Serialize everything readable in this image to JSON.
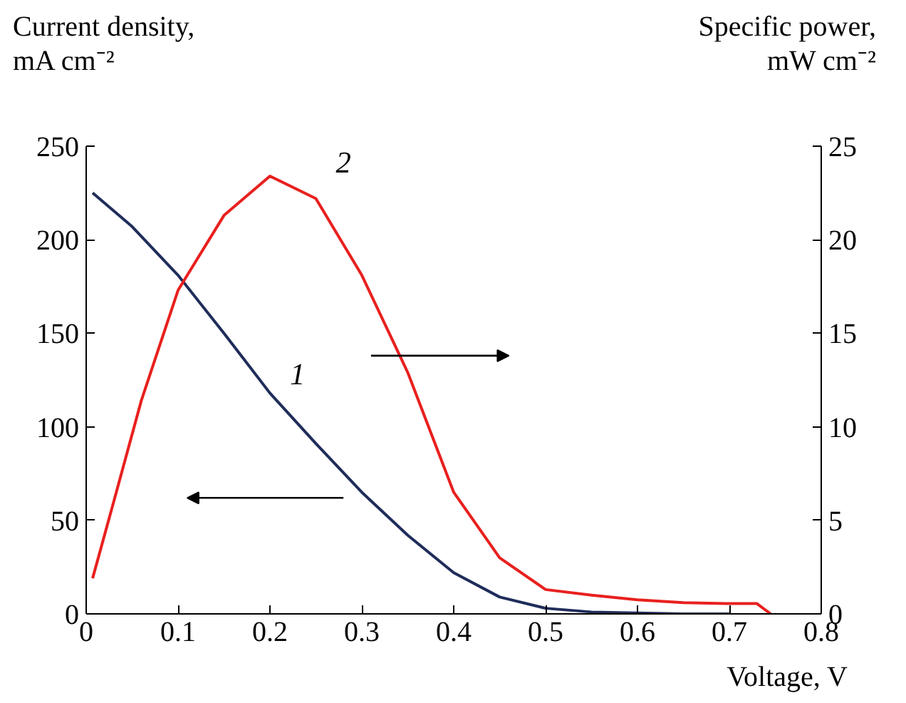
{
  "chart_data": {
    "type": "line",
    "xlabel": "Voltage, V",
    "ylabel": "Current density,\nmA cm⁻²",
    "y2label": "Specific power,\nmW cm⁻²",
    "xlim": [
      0,
      0.8
    ],
    "xticks": [
      0,
      0.1,
      0.2,
      0.3,
      0.4,
      0.5,
      0.6,
      0.7,
      0.8
    ],
    "ylim": [
      0,
      250
    ],
    "yticks": [
      0,
      50,
      100,
      150,
      200,
      250
    ],
    "y2lim": [
      0,
      25
    ],
    "y2ticks": [
      0,
      5,
      10,
      15,
      20,
      25
    ],
    "series": [
      {
        "name": "1",
        "color": "#1f2d5a",
        "x": [
          0.007,
          0.05,
          0.1,
          0.15,
          0.2,
          0.25,
          0.3,
          0.35,
          0.4,
          0.45,
          0.5,
          0.55,
          0.6,
          0.65,
          0.7
        ],
        "values": [
          225,
          207,
          181,
          150,
          118,
          91,
          65,
          42,
          22,
          9,
          3,
          1,
          0.5,
          0,
          0
        ]
      },
      {
        "name": "2",
        "color": "#e8201e",
        "axis": "y2",
        "x": [
          0.007,
          0.03,
          0.06,
          0.1,
          0.15,
          0.2,
          0.25,
          0.3,
          0.35,
          0.4,
          0.45,
          0.5,
          0.55,
          0.6,
          0.65,
          0.7,
          0.73,
          0.745
        ],
        "values": [
          1.9,
          6,
          11.4,
          17.3,
          21.3,
          23.4,
          22.2,
          18.1,
          12.9,
          6.5,
          3,
          1.3,
          1,
          0.75,
          0.6,
          0.55,
          0.55,
          0
        ]
      }
    ]
  }
}
